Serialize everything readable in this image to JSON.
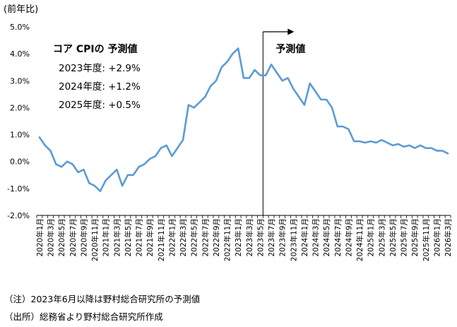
{
  "chart_data": {
    "type": "line",
    "unit_label": "(前年比)",
    "y_ticks": [
      "5.0%",
      "4.0%",
      "3.0%",
      "2.0%",
      "1.0%",
      "0.0%",
      "-1.0%",
      "-2.0%"
    ],
    "ylim": [
      -2.0,
      5.0
    ],
    "x_tick_labels": [
      "2020年1月",
      "2020年3月",
      "2020年5月",
      "2020年7月",
      "2020年9月",
      "2020年11月",
      "2021年1月",
      "2021年3月",
      "2021年5月",
      "2021年7月",
      "2021年9月",
      "2021年11月",
      "2022年1月",
      "2022年3月",
      "2022年5月",
      "2022年7月",
      "2022年9月",
      "2022年11月",
      "2023年1月",
      "2023年3月",
      "2023年5月",
      "2023年7月",
      "2023年9月",
      "2023年11月",
      "2024年1月",
      "2024年3月",
      "2024年5月",
      "2024年7月",
      "2024年9月",
      "2024年11月",
      "2025年1月",
      "2025年3月",
      "2025年5月",
      "2025年7月",
      "2025年9月",
      "2025年11月",
      "2026年1月",
      "2026年3月"
    ],
    "series": [
      {
        "color": "#5b9bd5",
        "start": "2020-01",
        "values": [
          0.9,
          0.6,
          0.4,
          -0.1,
          -0.2,
          0.0,
          -0.1,
          -0.4,
          -0.3,
          -0.8,
          -0.9,
          -1.1,
          -0.7,
          -0.5,
          -0.3,
          -0.9,
          -0.5,
          -0.5,
          -0.2,
          -0.1,
          0.1,
          0.2,
          0.5,
          0.6,
          0.2,
          0.5,
          0.8,
          2.1,
          2.0,
          2.2,
          2.4,
          2.8,
          3.0,
          3.5,
          3.7,
          4.0,
          4.2,
          3.1,
          3.1,
          3.4,
          3.2,
          3.2,
          3.6,
          3.3,
          3.0,
          3.1,
          2.7,
          2.4,
          2.1,
          2.9,
          2.6,
          2.3,
          2.3,
          2.0,
          1.3,
          1.3,
          1.2,
          0.75,
          0.75,
          0.7,
          0.75,
          0.7,
          0.8,
          0.7,
          0.6,
          0.65,
          0.55,
          0.6,
          0.5,
          0.6,
          0.5,
          0.5,
          0.4,
          0.4,
          0.3
        ]
      }
    ],
    "forecast_marker": {
      "date": "2023-06",
      "label": "予測値"
    },
    "annotation": {
      "title": "コア CPIの 予測値",
      "lines": [
        "2023年度: +2.9%",
        "2024年度: +1.2%",
        "2025年度: +0.5%"
      ]
    },
    "grid": false
  },
  "notes": {
    "note1": "（注）2023年6月以降は野村総合研究所の予測値",
    "note2": "（出所）総務省より野村総合研究所作成"
  }
}
